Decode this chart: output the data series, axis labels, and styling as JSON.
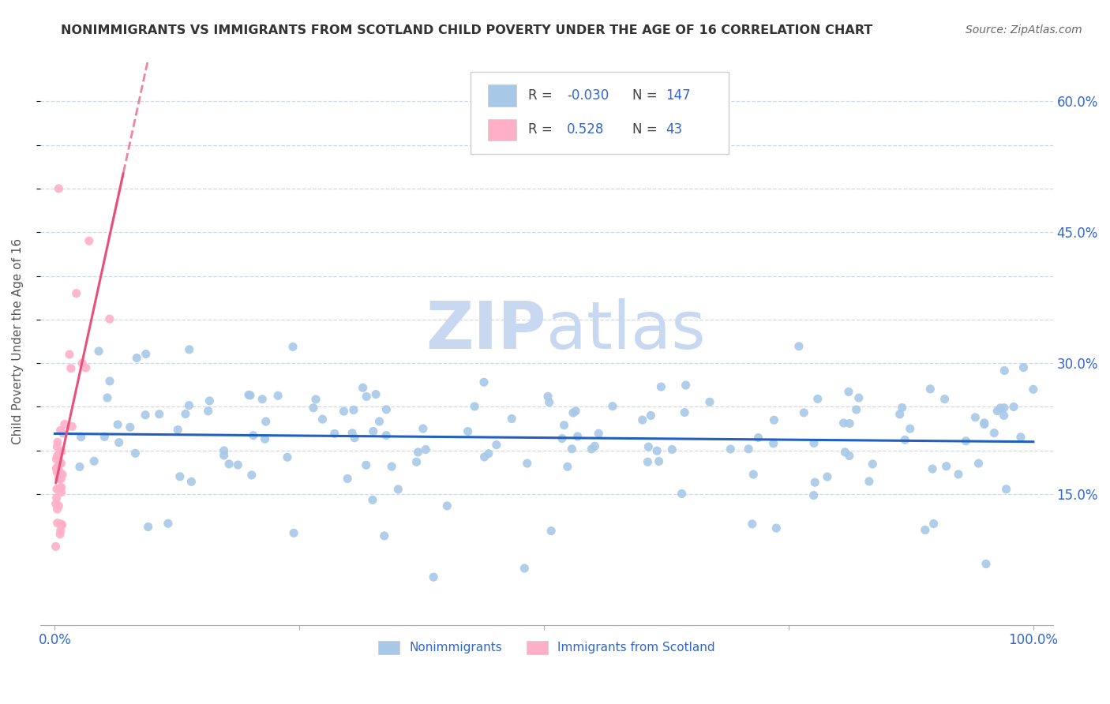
{
  "title": "NONIMMIGRANTS VS IMMIGRANTS FROM SCOTLAND CHILD POVERTY UNDER THE AGE OF 16 CORRELATION CHART",
  "source": "Source: ZipAtlas.com",
  "ylabel": "Child Poverty Under the Age of 16",
  "xlim": [
    -0.015,
    1.02
  ],
  "ylim": [
    0.0,
    0.65
  ],
  "y_ticks": [
    0.15,
    0.2,
    0.25,
    0.3,
    0.35,
    0.4,
    0.45,
    0.5,
    0.55,
    0.6
  ],
  "y_tick_labels": [
    "15.0%",
    "",
    "",
    "30.0%",
    "",
    "",
    "45.0%",
    "",
    "",
    "60.0%"
  ],
  "legend_r_blue": "-0.030",
  "legend_n_blue": "147",
  "legend_r_pink": "0.528",
  "legend_n_pink": "43",
  "blue_scatter_color": "#a8c8e8",
  "pink_scatter_color": "#ffb0c8",
  "trend_blue_color": "#2060c0",
  "trend_pink_color": "#e8507a",
  "legend_text_color": "#3366cc",
  "legend_r_label_color": "#333333",
  "watermark_color": "#c8d8f0",
  "title_color": "#333333",
  "source_color": "#666666",
  "grid_color": "#d0d8e8",
  "axis_tick_color": "#3366cc"
}
